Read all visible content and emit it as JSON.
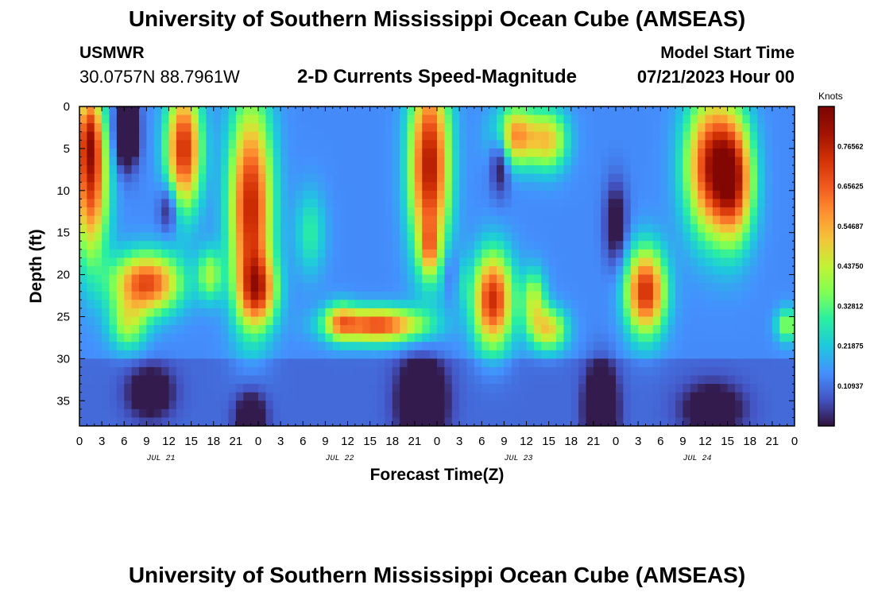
{
  "page": {
    "title_top": "University of Southern Mississippi Ocean Cube (AMSEAS)",
    "title_bottom": "University of Southern Mississippi Ocean Cube (AMSEAS)",
    "station_id": "USMWR",
    "station_coords": "30.0757N  88.7961W",
    "subtitle": "2-D Currents Speed-Magnitude",
    "model_start_label": "Model Start Time",
    "model_start_value": "07/21/2023 Hour 00"
  },
  "chart_data": {
    "type": "heatmap",
    "title": "2-D Currents Speed-Magnitude",
    "xlabel": "Forecast Time(Z)",
    "ylabel": "Depth (ft)",
    "x_range_hours": [
      0,
      96
    ],
    "y_range_ft": [
      0,
      38
    ],
    "x_tick_hours": [
      0,
      3,
      6,
      9,
      12,
      15,
      18,
      21,
      24,
      27,
      30,
      33,
      36,
      39,
      42,
      45,
      48,
      51,
      54,
      57,
      60,
      63,
      66,
      69,
      72,
      75,
      78,
      81,
      84,
      87,
      90,
      93,
      96
    ],
    "x_tick_labels": [
      "0",
      "3",
      "6",
      "9",
      "12",
      "15",
      "18",
      "21",
      "0",
      "3",
      "6",
      "9",
      "12",
      "15",
      "18",
      "21",
      "0",
      "3",
      "6",
      "9",
      "12",
      "15",
      "18",
      "21",
      "0",
      "3",
      "6",
      "9",
      "12",
      "15",
      "18",
      "21",
      "0"
    ],
    "date_labels": [
      {
        "hour": 12,
        "label": "JUL 21"
      },
      {
        "hour": 36,
        "label": "JUL 22"
      },
      {
        "hour": 60,
        "label": "JUL 23"
      },
      {
        "hour": 84,
        "label": "JUL 24"
      }
    ],
    "y_ticks": [
      0,
      5,
      10,
      15,
      20,
      25,
      30,
      35
    ],
    "y_tick_labels": [
      "0",
      "5",
      "10",
      "15",
      "20",
      "25",
      "30",
      "35"
    ],
    "colorbar": {
      "unit": "Knots",
      "range": [
        0,
        0.875
      ],
      "ticks": [
        0.10937,
        0.21875,
        0.32812,
        0.4375,
        0.54687,
        0.65625,
        0.76562
      ],
      "tick_labels": [
        "0.10937",
        "0.21875",
        "0.32812",
        "0.43750",
        "0.54687",
        "0.65625",
        "0.76562"
      ],
      "colors": [
        "#30123b",
        "#4454c4",
        "#4490fe",
        "#1fc8de",
        "#29efa2",
        "#7eff55",
        "#c2f234",
        "#f3c63a",
        "#fe9131",
        "#f0591e",
        "#d23105",
        "#a11201",
        "#7a0403"
      ]
    },
    "grid": false
  }
}
